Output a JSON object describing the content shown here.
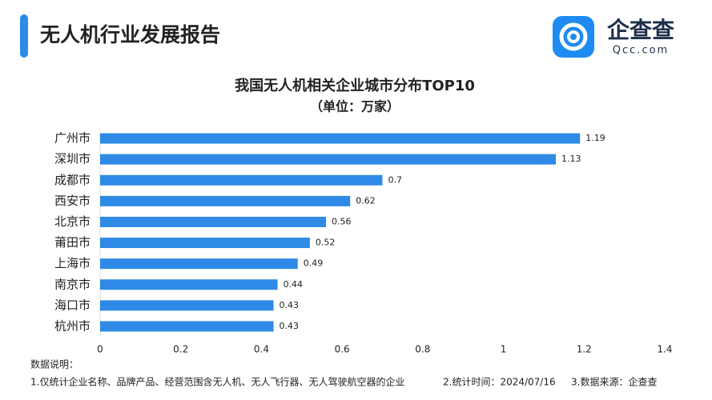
{
  "header": {
    "title": "无人机行业发展报告",
    "brand": "企查查",
    "brand_url": "Qcc.com"
  },
  "chart_data": {
    "type": "bar",
    "orientation": "horizontal",
    "title": "我国无人机相关企业城市分布TOP10",
    "subtitle": "（单位：万家）",
    "categories": [
      "广州市",
      "深圳市",
      "成都市",
      "西安市",
      "北京市",
      "莆田市",
      "上海市",
      "南京市",
      "海口市",
      "杭州市"
    ],
    "values": [
      1.19,
      1.13,
      0.7,
      0.62,
      0.56,
      0.52,
      0.49,
      0.44,
      0.43,
      0.43
    ],
    "color": "#2e8ae6",
    "xlim": [
      0,
      1.4
    ],
    "xticks": [
      0,
      0.2,
      0.4,
      0.6,
      0.8,
      1,
      1.2,
      1.4
    ],
    "grid": false
  },
  "notes": {
    "label": "数据说明：",
    "items": [
      "1.仅统计企业名称、品牌产品、经营范围含无人机、无人飞行器、无人驾驶航空器的企业",
      "2.统计时间：2024/07/16",
      "3.数据来源：企查查"
    ]
  }
}
